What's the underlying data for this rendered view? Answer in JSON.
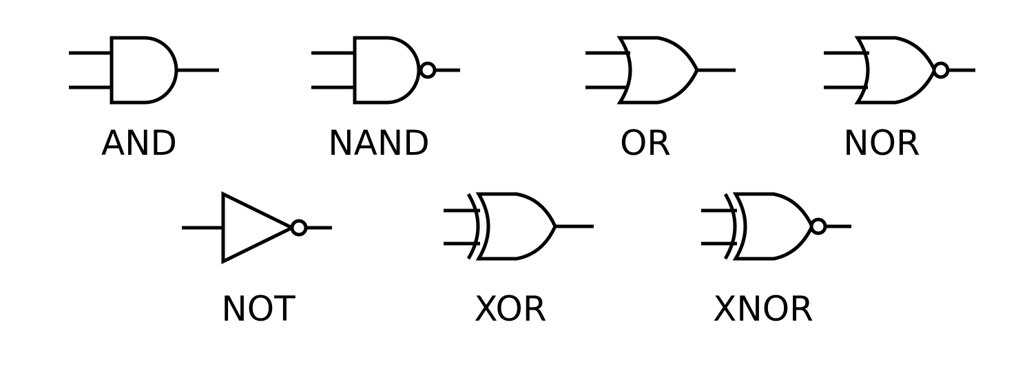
{
  "diagram": {
    "gates": [
      {
        "id": "and",
        "label": "AND",
        "icon": "and-gate-icon"
      },
      {
        "id": "nand",
        "label": "NAND",
        "icon": "nand-gate-icon"
      },
      {
        "id": "or",
        "label": "OR",
        "icon": "or-gate-icon"
      },
      {
        "id": "nor",
        "label": "NOR",
        "icon": "nor-gate-icon"
      },
      {
        "id": "not",
        "label": "NOT",
        "icon": "not-gate-icon"
      },
      {
        "id": "xor",
        "label": "XOR",
        "icon": "xor-gate-icon"
      },
      {
        "id": "xnor",
        "label": "XNOR",
        "icon": "xnor-gate-icon"
      }
    ],
    "line_color": "#000000",
    "background_color": "#ffffff"
  }
}
